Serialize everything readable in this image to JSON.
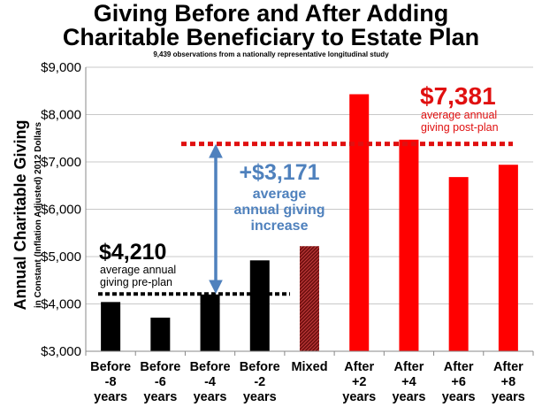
{
  "chart_data": {
    "type": "bar",
    "title_line1": "Giving Before and After Adding",
    "title_line2": "Charitable Beneficiary to Estate Plan",
    "subtitle": "9,439 observations from a nationally representative longitudinal study",
    "ylabel": "Annual Charitable Giving",
    "ylabel_sub": "in Constant (Inflation Adjusted) 2012  Dollars",
    "ylim": [
      3000,
      9000
    ],
    "yticks": [
      "$3,000",
      "$4,000",
      "$5,000",
      "$6,000",
      "$7,000",
      "$8,000",
      "$9,000"
    ],
    "ytick_values": [
      3000,
      4000,
      5000,
      6000,
      7000,
      8000,
      9000
    ],
    "categories": [
      [
        "Before",
        "-8",
        "years"
      ],
      [
        "Before",
        "-6",
        "years"
      ],
      [
        "Before",
        "-4",
        "years"
      ],
      [
        "Before",
        "-2",
        "years"
      ],
      [
        "Mixed"
      ],
      [
        "After",
        "+2",
        "years"
      ],
      [
        "After",
        "+4",
        "years"
      ],
      [
        "After",
        "+6",
        "years"
      ],
      [
        "After",
        "+8",
        "years"
      ]
    ],
    "values": [
      4040,
      3710,
      4200,
      4920,
      5220,
      8430,
      7470,
      6680,
      6940
    ],
    "bar_colors": [
      "#000000",
      "#000000",
      "#000000",
      "#000000",
      "#8b1a1a",
      "#ff0000",
      "#ff0000",
      "#ff0000",
      "#ff0000"
    ],
    "grid": true,
    "annotations": {
      "pre": {
        "value": 4210,
        "amount": "$4,210",
        "line1": "average annual",
        "line2": "giving pre-plan",
        "color": "#000000"
      },
      "post": {
        "value": 7381,
        "amount": "$7,381",
        "line1": "average annual",
        "line2": "giving post-plan",
        "color": "#e01010"
      },
      "increase": {
        "amount": "+$3,171",
        "line1": "average",
        "line2": "annual giving",
        "line3": "increase",
        "color": "#4f81bd"
      }
    }
  }
}
